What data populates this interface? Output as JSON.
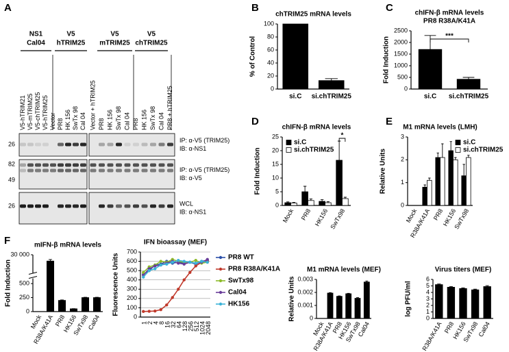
{
  "blot": {
    "panel": "A",
    "groups": [
      {
        "lines": [
          "NS1",
          "Cal04"
        ]
      },
      {
        "lines": [
          "V5",
          "hTRIM25"
        ]
      },
      {
        "lines": [
          "V5",
          "mTRIM25"
        ]
      },
      {
        "lines": [
          "V5",
          "chTRIM25"
        ]
      }
    ],
    "lanes": [
      "V5-hTRIM21",
      "V5-mTRIM25",
      "V5-chTRIM25",
      "V5-hTRIM25",
      "Vector",
      "PR8",
      "HK 156",
      "SwTx 98",
      "Cal 04",
      "Vector + hTRIM25",
      "PR8",
      "HK 156",
      "SwTx 98",
      "Cal 04",
      "PR8",
      "HK 156",
      "SwTx 98",
      "Cal 04",
      "PR8 + hTRIM25"
    ],
    "rows": [
      {
        "markers": [
          26
        ],
        "labels": [
          "IP: α-V5 (TRIM25)",
          "IB: α-NS1"
        ]
      },
      {
        "markers": [
          82,
          49
        ],
        "labels": [
          "IP: α-V5 (TRIM25)",
          "IB: α-V5"
        ]
      },
      {
        "markers": [
          26
        ],
        "labels": [
          "WCL",
          "IB: α-NS1"
        ]
      }
    ]
  },
  "chart_data": [
    {
      "type": "bar",
      "panel": "B",
      "title": [
        "chTRIM25 mRNA levels"
      ],
      "ylabel": "% of Control",
      "categories": [
        "si.C",
        "si.chTRIM25"
      ],
      "values": [
        100,
        13
      ],
      "errors": [
        null,
        3
      ],
      "color": "#000000",
      "ylim": [
        0,
        100
      ],
      "yticks": [
        0,
        20,
        40,
        60,
        80,
        100
      ]
    },
    {
      "type": "bar",
      "panel": "C",
      "title": [
        "chIFN-β mRNA levels",
        "PR8 R38A/K41A"
      ],
      "ylabel": "Fold Induction",
      "categories": [
        "si.C",
        "si.chTRIM25"
      ],
      "values": [
        1700,
        420
      ],
      "errors": [
        600,
        80
      ],
      "color": "#000000",
      "ylim": [
        0,
        2500
      ],
      "yticks": [
        0,
        500,
        1000,
        1500,
        2000,
        2500
      ],
      "annotation": "***"
    },
    {
      "type": "bar",
      "panel": "D",
      "title": [
        "chIFN-β mRNA levels"
      ],
      "ylabel": "Fold Induction",
      "categories": [
        "Mock",
        "PR8",
        "HK156",
        "SwTx98"
      ],
      "series": [
        {
          "name": "si.C",
          "color": "#000000",
          "values": [
            1,
            5,
            1.5,
            16.5
          ],
          "errors": [
            0.3,
            2,
            0.6,
            7
          ]
        },
        {
          "name": "si.chTRIM25",
          "color": "#ffffff",
          "values": [
            0.9,
            1.8,
            1,
            2.5
          ],
          "errors": [
            0.2,
            0.6,
            0.4,
            0.5
          ]
        }
      ],
      "ylim": [
        0,
        25
      ],
      "yticks": [
        0,
        5,
        10,
        15,
        20,
        25
      ],
      "legend": "upper left",
      "annotation": "*"
    },
    {
      "type": "bar",
      "panel": "E",
      "title": [
        "M1 mRNA levels (LMH)"
      ],
      "ylabel": "Relative Units",
      "categories": [
        "Mock",
        "R38A/K41A",
        "PR8",
        "HK156",
        "SwTx98"
      ],
      "series": [
        {
          "name": "si.C",
          "color": "#000000",
          "values": [
            0,
            0.8,
            2.1,
            2.4,
            1.3
          ],
          "errors": [
            null,
            0.1,
            0.2,
            0.4,
            0.5
          ]
        },
        {
          "name": "si.chTRIM25",
          "color": "#ffffff",
          "values": [
            0,
            1.1,
            2.1,
            2,
            2.1
          ],
          "errors": [
            null,
            0.1,
            0.6,
            0.1,
            0.1
          ]
        }
      ],
      "ylim": [
        0,
        3
      ],
      "yticks": [
        0,
        1,
        2,
        3
      ],
      "legend": "upper right"
    },
    {
      "type": "bar",
      "panel": "F",
      "title": [
        "mIFN-β mRNA levels"
      ],
      "ylabel": "Fold Induction",
      "categories": [
        "Mock",
        "R38A/K41A",
        "PR8",
        "HK156",
        "SwTx98",
        "Cal04"
      ],
      "values": [
        0,
        28000,
        200,
        50,
        250,
        250
      ],
      "errors": [
        null,
        500,
        8,
        3,
        5,
        5
      ],
      "color": "#000000",
      "ylim": [
        0,
        30000
      ],
      "ybreak": [
        550,
        25000
      ],
      "yticks": [
        0,
        250,
        500,
        {
          "value": 30000,
          "label": "30 000"
        }
      ]
    },
    {
      "type": "line",
      "title": [
        "IFN bioassay (MEF)"
      ],
      "ylabel": "Fluorescence Units",
      "categories": [
        "1",
        "2",
        "4",
        "8",
        "16",
        "32",
        "64",
        "128",
        "256",
        "512",
        "1024",
        "2048"
      ],
      "series": [
        {
          "name": "PR8 WT",
          "color": "#2a4fa8",
          "values": [
            460,
            500,
            560,
            570,
            600,
            580,
            590,
            580,
            590,
            570,
            600,
            610
          ]
        },
        {
          "name": "PR8 R38A/K41A",
          "color": "#c0392b",
          "values": [
            60,
            62,
            65,
            80,
            130,
            210,
            300,
            400,
            480,
            550,
            590,
            600
          ]
        },
        {
          "name": "SwTx98",
          "color": "#8dbb2a",
          "values": [
            480,
            540,
            560,
            600,
            590,
            620,
            600,
            590,
            590,
            610,
            580,
            590
          ]
        },
        {
          "name": "Cal04",
          "color": "#6a3d9a",
          "values": [
            450,
            520,
            550,
            560,
            580,
            600,
            580,
            570,
            590,
            580,
            590,
            620
          ]
        },
        {
          "name": "HK156",
          "color": "#3bb3d8",
          "values": [
            430,
            500,
            520,
            560,
            570,
            590,
            610,
            600,
            590,
            580,
            600,
            590
          ]
        }
      ],
      "ylim": [
        0,
        700
      ],
      "yticks": [
        0,
        100,
        200,
        300,
        400,
        500,
        600,
        700
      ],
      "grid": true,
      "legend": "right"
    },
    {
      "type": "bar",
      "title": [
        "M1 mRNA levels (MEF)"
      ],
      "ylabel": "Relative Units",
      "categories": [
        "Mock",
        "R38A/K41A",
        "PR8",
        "HK156",
        "SwTx98",
        "Cal04"
      ],
      "values": [
        0,
        0.00195,
        0.0017,
        0.0019,
        0.00155,
        0.0028
      ],
      "errors": [
        null,
        3e-05,
        3e-05,
        3e-05,
        5e-05,
        8e-05
      ],
      "color": "#000000",
      "ylim": [
        0,
        0.003
      ],
      "yticks": [
        0,
        0.001,
        0.002,
        0.003
      ]
    },
    {
      "type": "bar",
      "title": [
        "Virus titers (MEF)"
      ],
      "ylabel": "log PFU/ml",
      "categories": [
        "R38A/K41A",
        "PR8",
        "HK156",
        "SwTx98",
        "Cal04"
      ],
      "values": [
        5.2,
        4.8,
        4.6,
        4.4,
        4.9
      ],
      "errors": [
        0.1,
        0.1,
        0.1,
        0.1,
        0.15
      ],
      "color": "#000000",
      "ylim": [
        0,
        6
      ],
      "yticks": [
        0,
        1,
        2,
        3,
        4,
        5,
        6
      ]
    }
  ]
}
